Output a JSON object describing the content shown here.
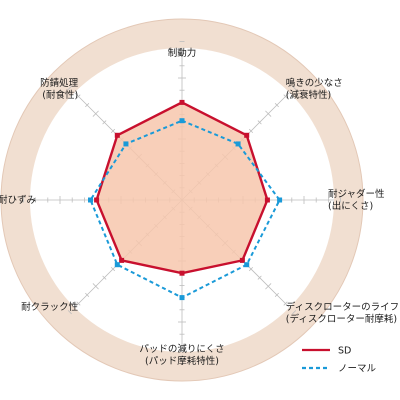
{
  "chart_data": {
    "type": "radar",
    "axes": [
      {
        "lines": [
          "制動力"
        ]
      },
      {
        "lines": [
          "鳴きの少なさ",
          "(減衰特性)"
        ]
      },
      {
        "lines": [
          "耐ジャダー性",
          "(出にくさ)"
        ]
      },
      {
        "lines": [
          "ディスクローターのライフ",
          "(ディスクローター耐摩耗)"
        ]
      },
      {
        "lines": [
          "パッドの減りにくさ",
          "(パッド摩耗特性)"
        ]
      },
      {
        "lines": [
          "耐クラック性"
        ]
      },
      {
        "lines": [
          "耐ひずみ"
        ]
      },
      {
        "lines": [
          "防錆処理",
          "(耐食性)"
        ]
      }
    ],
    "scale_max": 10,
    "series": [
      {
        "name": "SD",
        "values": [
          8,
          7.5,
          7,
          7,
          6,
          7,
          7,
          7.5
        ],
        "color": "#c8102e",
        "fill": "#f7c7ad",
        "style": "solid"
      },
      {
        "name": "ノーマル",
        "values": [
          6.5,
          6.5,
          8,
          7.5,
          8,
          7.5,
          7.5,
          6.5
        ],
        "color": "#1a9ad8",
        "style": "dashed"
      }
    ],
    "legend_position": "bottom-right",
    "grid": true,
    "background_color": "#f1dfd1"
  }
}
